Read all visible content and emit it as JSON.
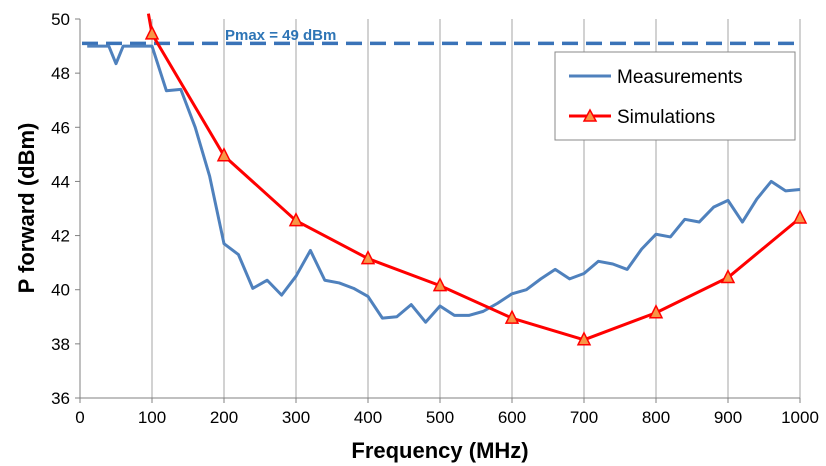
{
  "chart_data": {
    "type": "line",
    "title": "",
    "xlabel": "Frequency (MHz)",
    "ylabel": "P forward (dBm)",
    "xlim": [
      0,
      1000
    ],
    "ylim": [
      36,
      50
    ],
    "xticks": [
      0,
      100,
      200,
      300,
      400,
      500,
      600,
      700,
      800,
      900,
      1000
    ],
    "yticks": [
      36,
      38,
      40,
      42,
      44,
      46,
      48,
      50
    ],
    "x_tick_labels": [
      "0",
      "100",
      "200",
      "300",
      "400",
      "500",
      "600",
      "700",
      "800",
      "900",
      "1000"
    ],
    "y_tick_labels": [
      "36",
      "38",
      "40",
      "42",
      "44",
      "46",
      "48",
      "50"
    ],
    "grid": "vertical",
    "legend_position": "top-right",
    "reference_line": {
      "label": "Pmax = 49 dBm",
      "y": 49.1,
      "color": "#3A73B8",
      "style": "dashed"
    },
    "series": [
      {
        "name": "Measurements",
        "color": "#4F81BD",
        "marker": "none",
        "x": [
          10,
          20,
          30,
          40,
          50,
          60,
          70,
          80,
          90,
          100,
          120,
          140,
          160,
          180,
          200,
          220,
          240,
          260,
          280,
          300,
          320,
          340,
          360,
          380,
          400,
          420,
          440,
          460,
          480,
          500,
          520,
          540,
          560,
          580,
          600,
          620,
          640,
          660,
          680,
          700,
          720,
          740,
          760,
          780,
          800,
          820,
          840,
          860,
          880,
          900,
          920,
          940,
          960,
          980,
          1000
        ],
        "values": [
          49.0,
          49.0,
          49.0,
          49.0,
          48.35,
          49.0,
          49.0,
          49.0,
          49.0,
          49.0,
          47.35,
          47.4,
          46.0,
          44.2,
          41.7,
          41.3,
          40.05,
          40.35,
          39.8,
          40.5,
          41.45,
          40.35,
          40.25,
          40.05,
          39.75,
          38.95,
          39.0,
          39.45,
          38.8,
          39.4,
          39.05,
          39.05,
          39.2,
          39.5,
          39.85,
          40.0,
          40.4,
          40.75,
          40.4,
          40.6,
          41.05,
          40.95,
          40.75,
          41.5,
          42.05,
          41.95,
          42.6,
          42.5,
          43.05,
          43.3,
          42.5,
          43.35,
          44.0,
          43.65,
          43.7
        ]
      },
      {
        "name": "Simulations",
        "color": "#FF0000",
        "marker": "triangle",
        "marker_color": "#F79646",
        "x": [
          100,
          200,
          300,
          400,
          500,
          600,
          700,
          800,
          900,
          1000
        ],
        "values": [
          49.45,
          44.95,
          42.55,
          41.15,
          40.15,
          38.95,
          38.15,
          39.15,
          40.45,
          42.65
        ],
        "lead_in": {
          "x": [
            95,
            100
          ],
          "values": [
            50.2,
            49.45
          ]
        }
      }
    ]
  }
}
